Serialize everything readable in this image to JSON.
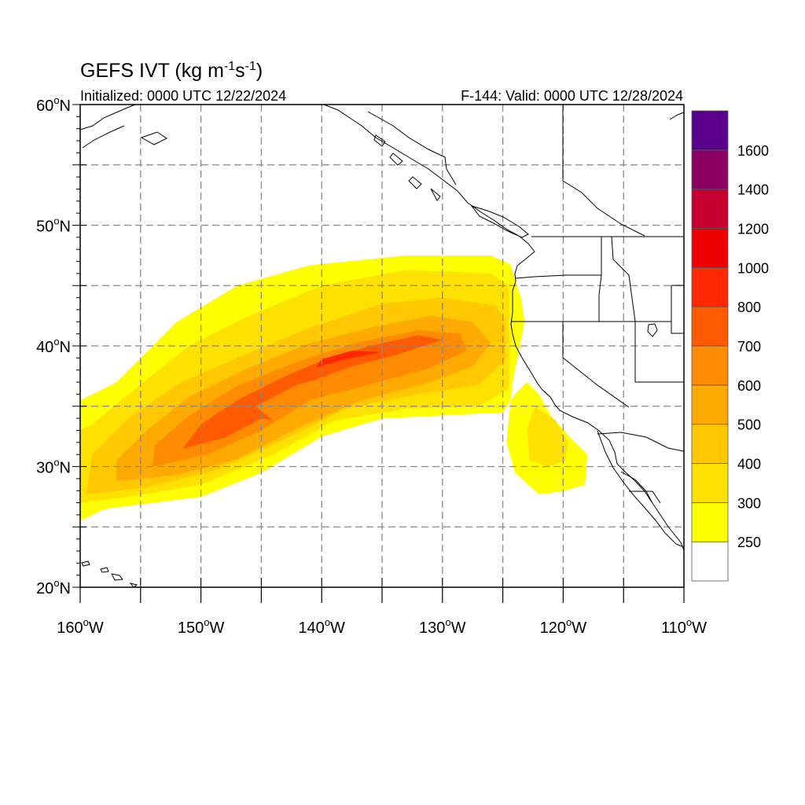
{
  "title": {
    "main": "GEFS IVT (kg m",
    "sup1": "-1",
    "mid": "s",
    "sup2": "-1",
    "end": ")"
  },
  "init_label": "Initialized: 0000 UTC 12/22/2024",
  "valid_label": "F-144: Valid: 0000 UTC 12/28/2024",
  "map": {
    "lon_range": [
      -160,
      -110
    ],
    "lat_range": [
      20,
      60
    ],
    "grid_step_deg": 5,
    "lon_ticks": [
      {
        "v": -160,
        "num": "160",
        "hem": "W"
      },
      {
        "v": -150,
        "num": "150",
        "hem": "W"
      },
      {
        "v": -140,
        "num": "140",
        "hem": "W"
      },
      {
        "v": -130,
        "num": "130",
        "hem": "W"
      },
      {
        "v": -120,
        "num": "120",
        "hem": "W"
      },
      {
        "v": -110,
        "num": "110",
        "hem": "W"
      }
    ],
    "lat_ticks": [
      {
        "v": 20,
        "num": "20",
        "hem": "N"
      },
      {
        "v": 30,
        "num": "30",
        "hem": "N"
      },
      {
        "v": 40,
        "num": "40",
        "hem": "N"
      },
      {
        "v": 50,
        "num": "50",
        "hem": "N"
      },
      {
        "v": 60,
        "num": "60",
        "hem": "N"
      }
    ]
  },
  "colorbar": {
    "levels": [
      "250",
      "300",
      "400",
      "500",
      "600",
      "700",
      "800",
      "1000",
      "1200",
      "1400",
      "1600"
    ],
    "colors": [
      "#ffffff",
      "#ffff00",
      "#ffe100",
      "#ffc800",
      "#ffaa00",
      "#ff8c00",
      "#ff5a00",
      "#ff2800",
      "#ee0000",
      "#c80030",
      "#8c0064",
      "#5a008c"
    ]
  },
  "ivt_field": {
    "description_units": "kg m-1 s-1",
    "bands": [
      {
        "min_level": 250,
        "color": "#ffff00",
        "polygon_lonlat": [
          [
            -160,
            25.5
          ],
          [
            -158,
            26.5
          ],
          [
            -150,
            27.5
          ],
          [
            -145,
            29.5
          ],
          [
            -140,
            32.5
          ],
          [
            -135,
            34
          ],
          [
            -125,
            34.5
          ],
          [
            -124,
            36
          ],
          [
            -123,
            37
          ],
          [
            -122,
            36
          ],
          [
            -121,
            34.2
          ],
          [
            -119.5,
            32.5
          ],
          [
            -118,
            31
          ],
          [
            -118.2,
            28.5
          ],
          [
            -120,
            28
          ],
          [
            -122,
            27.7
          ],
          [
            -124,
            29.5
          ],
          [
            -124.7,
            32
          ],
          [
            -124.2,
            37
          ],
          [
            -123.2,
            42
          ],
          [
            -123.5,
            44
          ],
          [
            -124.4,
            46.8
          ],
          [
            -126,
            47.5
          ],
          [
            -133,
            47.5
          ],
          [
            -141,
            46.7
          ],
          [
            -147,
            45
          ],
          [
            -152,
            42
          ],
          [
            -157,
            37
          ],
          [
            -160,
            35.5
          ]
        ]
      },
      {
        "min_level": 300,
        "color": "#ffe100",
        "polygon_lonlat": [
          [
            -160,
            27
          ],
          [
            -156,
            27.5
          ],
          [
            -150,
            28.5
          ],
          [
            -144,
            31
          ],
          [
            -139,
            33.8
          ],
          [
            -133,
            34.8
          ],
          [
            -127,
            35
          ],
          [
            -124.5,
            36.5
          ],
          [
            -124.4,
            40
          ],
          [
            -124.5,
            45
          ],
          [
            -126,
            46
          ],
          [
            -133,
            46.3
          ],
          [
            -140,
            45
          ],
          [
            -146,
            42.5
          ],
          [
            -151,
            40
          ],
          [
            -156,
            36
          ],
          [
            -159,
            33.5
          ],
          [
            -160,
            33
          ]
        ]
      },
      {
        "min_level": 300,
        "color": "#ffe100",
        "polygon_lonlat": [
          [
            -122.3,
            35
          ],
          [
            -120.6,
            33.8
          ],
          [
            -119.6,
            32
          ],
          [
            -119.8,
            30.5
          ],
          [
            -121.2,
            30
          ],
          [
            -122.8,
            30.5
          ],
          [
            -123,
            33.2
          ]
        ]
      },
      {
        "min_level": 400,
        "color": "#ffc800",
        "polygon_lonlat": [
          [
            -159.5,
            27.7
          ],
          [
            -155,
            28.2
          ],
          [
            -149,
            29.6
          ],
          [
            -143,
            32.3
          ],
          [
            -138,
            34.8
          ],
          [
            -132,
            36
          ],
          [
            -127,
            36.8
          ],
          [
            -124.8,
            38.8
          ],
          [
            -124.8,
            42
          ],
          [
            -125.5,
            43.3
          ],
          [
            -130,
            44
          ],
          [
            -135,
            43.5
          ],
          [
            -141,
            41.5
          ],
          [
            -147,
            39
          ],
          [
            -152,
            36.8
          ],
          [
            -156,
            34
          ],
          [
            -159,
            31
          ]
        ]
      },
      {
        "min_level": 500,
        "color": "#ffaa00",
        "polygon_lonlat": [
          [
            -157,
            28.8
          ],
          [
            -152,
            29.3
          ],
          [
            -147,
            30.6
          ],
          [
            -142,
            33.2
          ],
          [
            -137,
            35.4
          ],
          [
            -131,
            37
          ],
          [
            -127.5,
            38.3
          ],
          [
            -126,
            40.2
          ],
          [
            -127.5,
            42
          ],
          [
            -131,
            42.5
          ],
          [
            -136,
            41.5
          ],
          [
            -141,
            40.2
          ],
          [
            -146,
            38.2
          ],
          [
            -151,
            35.8
          ],
          [
            -154.5,
            33
          ],
          [
            -157,
            30.5
          ]
        ]
      },
      {
        "min_level": 600,
        "color": "#ff8c00",
        "polygon_lonlat": [
          [
            -154,
            30
          ],
          [
            -149.5,
            31
          ],
          [
            -145,
            33
          ],
          [
            -141,
            35.5
          ],
          [
            -136,
            36.8
          ],
          [
            -131,
            38.2
          ],
          [
            -128,
            39.6
          ],
          [
            -128.5,
            41
          ],
          [
            -132,
            41.3
          ],
          [
            -137,
            40.3
          ],
          [
            -142,
            38.7
          ],
          [
            -147,
            36.7
          ],
          [
            -151,
            34.2
          ],
          [
            -153.8,
            31.8
          ]
        ]
      },
      {
        "min_level": 700,
        "color": "#ff5a00",
        "polygon_lonlat": [
          [
            -151.5,
            31.5
          ],
          [
            -148,
            32.4
          ],
          [
            -145,
            34
          ],
          [
            -144,
            33.8
          ],
          [
            -145.5,
            35
          ],
          [
            -142,
            36.8
          ],
          [
            -140.5,
            37.2
          ],
          [
            -137.5,
            38.3
          ],
          [
            -134,
            39.2
          ],
          [
            -130,
            40.5
          ],
          [
            -132,
            40.9
          ],
          [
            -136,
            40
          ],
          [
            -139.5,
            39
          ],
          [
            -143,
            37.5
          ],
          [
            -147,
            35.5
          ],
          [
            -150,
            33.5
          ]
        ]
      },
      {
        "min_level": 800,
        "color": "#ff2800",
        "polygon_lonlat": [
          [
            -140.5,
            38.2
          ],
          [
            -138,
            38.9
          ],
          [
            -135,
            39.5
          ],
          [
            -137.5,
            39.6
          ],
          [
            -140,
            38.9
          ]
        ]
      }
    ]
  }
}
